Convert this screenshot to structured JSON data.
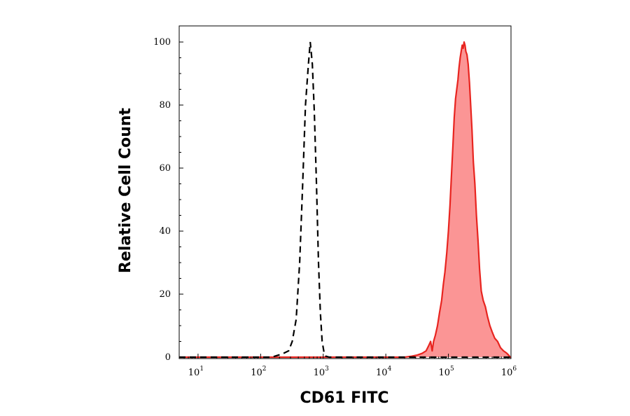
{
  "chart_data": {
    "type": "area",
    "xlabel": "CD61 FITC",
    "ylabel": "Relative Cell Count",
    "x_scale": "log",
    "xlim": [
      5,
      1000000
    ],
    "ylim": [
      0,
      100
    ],
    "x_ticks": [
      {
        "base": "10",
        "exp": "1",
        "value": 10
      },
      {
        "base": "10",
        "exp": "2",
        "value": 100
      },
      {
        "base": "10",
        "exp": "3",
        "value": 1000
      },
      {
        "base": "10",
        "exp": "4",
        "value": 10000
      },
      {
        "base": "10",
        "exp": "5",
        "value": 100000
      },
      {
        "base": "10",
        "exp": "6",
        "value": 1000000
      }
    ],
    "y_ticks": [
      "0",
      "20",
      "40",
      "60",
      "80",
      "100"
    ],
    "grid": false,
    "series": [
      {
        "style": "dashed",
        "color": "#000000",
        "points": [
          [
            5,
            0
          ],
          [
            150,
            0
          ],
          [
            180,
            0.5
          ],
          [
            220,
            1
          ],
          [
            280,
            2
          ],
          [
            320,
            5
          ],
          [
            370,
            12
          ],
          [
            420,
            30
          ],
          [
            470,
            55
          ],
          [
            520,
            80
          ],
          [
            580,
            93
          ],
          [
            620,
            100
          ],
          [
            670,
            93
          ],
          [
            720,
            78
          ],
          [
            780,
            55
          ],
          [
            840,
            30
          ],
          [
            900,
            14
          ],
          [
            960,
            5
          ],
          [
            1030,
            1.5
          ],
          [
            1100,
            0.3
          ],
          [
            1250,
            0
          ],
          [
            1000000,
            0
          ]
        ]
      },
      {
        "style": "filled",
        "color": "#e8241f",
        "fill": "#fb9595",
        "points": [
          [
            5,
            0
          ],
          [
            20000,
            0
          ],
          [
            26000,
            0.3
          ],
          [
            32000,
            0.7
          ],
          [
            38000,
            1.2
          ],
          [
            44000,
            2
          ],
          [
            48000,
            3.5
          ],
          [
            52000,
            5
          ],
          [
            55000,
            2
          ],
          [
            58000,
            5
          ],
          [
            62000,
            7
          ],
          [
            67000,
            10
          ],
          [
            72000,
            14
          ],
          [
            78000,
            18
          ],
          [
            83000,
            23
          ],
          [
            88000,
            27
          ],
          [
            94000,
            33
          ],
          [
            100000,
            40
          ],
          [
            106000,
            48
          ],
          [
            112000,
            58
          ],
          [
            118000,
            67
          ],
          [
            124000,
            76
          ],
          [
            130000,
            82
          ],
          [
            136000,
            85
          ],
          [
            142000,
            88
          ],
          [
            148000,
            92
          ],
          [
            154000,
            95
          ],
          [
            160000,
            97
          ],
          [
            166000,
            99
          ],
          [
            172000,
            98
          ],
          [
            178000,
            100
          ],
          [
            184000,
            99
          ],
          [
            190000,
            97
          ],
          [
            198000,
            96
          ],
          [
            207000,
            93
          ],
          [
            217000,
            87
          ],
          [
            227000,
            80
          ],
          [
            238000,
            72
          ],
          [
            250000,
            62
          ],
          [
            265000,
            55
          ],
          [
            280000,
            45
          ],
          [
            297000,
            37
          ],
          [
            315000,
            28
          ],
          [
            335000,
            21
          ],
          [
            360000,
            18
          ],
          [
            390000,
            16
          ],
          [
            420000,
            13
          ],
          [
            460000,
            10
          ],
          [
            500000,
            8
          ],
          [
            550000,
            6
          ],
          [
            610000,
            5
          ],
          [
            680000,
            3
          ],
          [
            760000,
            2
          ],
          [
            850000,
            1.3
          ],
          [
            920000,
            0.6
          ],
          [
            970000,
            0
          ],
          [
            1000000,
            0
          ]
        ]
      }
    ]
  }
}
